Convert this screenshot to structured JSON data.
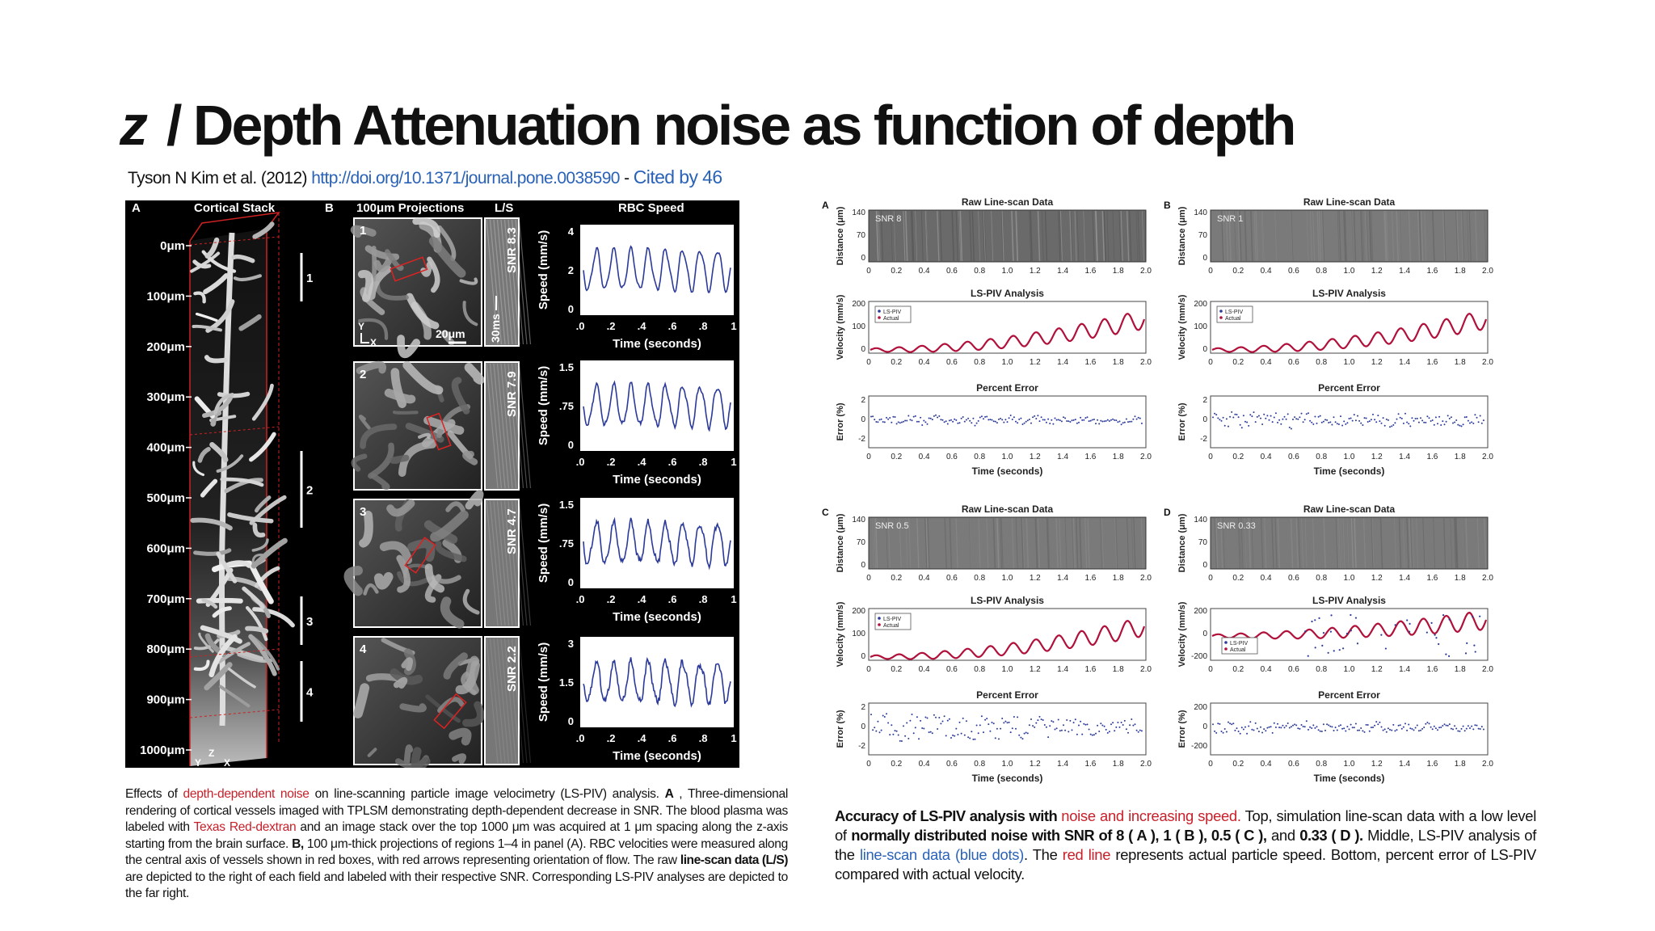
{
  "slide": {
    "title_symbol": "z",
    "title_text": "/ Depth Attenuation noise as function of depth",
    "citation_author": "Tyson N Kim et al. (2012)",
    "citation_link": "http://doi.org/10.1371/journal.pone.0038590",
    "citation_sep": "-",
    "citation_cited": "Cited by 46"
  },
  "left_figure": {
    "panel_a_label": "A",
    "panel_a_title": "Cortical Stack",
    "panel_b_label": "B",
    "panel_b_title": "100μm Projections",
    "ls_title": "L/S",
    "rbc_title": "RBC Speed",
    "depth_ticks": [
      "0μm",
      "100μm",
      "200μm",
      "300μm",
      "400μm",
      "500μm",
      "600μm",
      "700μm",
      "800μm",
      "900μm",
      "1000μm"
    ],
    "region_labels": [
      "1",
      "2",
      "3",
      "4"
    ],
    "axis_y": "Y",
    "axis_x": "X",
    "axis_z": "Z",
    "scale_bar": "20μm",
    "time_bar": "30ms",
    "snr_labels": [
      "SNR 8.3",
      "SNR 7.9",
      "SNR 4.7",
      "SNR 2.2"
    ],
    "speed_ylabel": "Speed (mm/s)",
    "time_xlabel": "Time (seconds)",
    "x_ticks": [
      ".0",
      ".2",
      ".4",
      ".6",
      ".8",
      "1"
    ],
    "y_ticks": [
      [
        "4",
        "2",
        "0"
      ],
      [
        "1.5",
        ".75",
        "0"
      ],
      [
        "1.5",
        ".75",
        "0"
      ],
      [
        "3",
        "1.5",
        "0"
      ]
    ]
  },
  "left_caption": {
    "s1": "Effects of ",
    "s2": "depth-dependent noise",
    "s3": " on line-scanning particle image velocimetry (LS-PIV) analysis. ",
    "s4": "A",
    "s5": " , Three-dimensional rendering of cortical vessels imaged with TPLSM demonstrating depth-dependent decrease in SNR. The blood plasma was labeled with ",
    "s6": "Texas Red-dextran",
    "s7": " and an image stack over the top 1000 μm was acquired at 1 μm spacing along the z-axis starting from the brain surface. ",
    "s8": "B,",
    "s9": " 100 μm-thick projections of regions 1–4 in panel (A). RBC velocities were measured along the central axis of vessels shown in red boxes, with red arrows representing orientation of flow. The raw ",
    "s10": "line-scan data (L/S)",
    "s11": " are depicted to the right of each field and labeled with their respective SNR. Corresponding LS-PIV analyses are depicted to the far right."
  },
  "right_figure": {
    "panel_letters": [
      "A",
      "B",
      "C",
      "D"
    ],
    "snr_tags": [
      "SNR 8",
      "SNR 1",
      "SNR 0.5",
      "SNR 0.33"
    ],
    "raw_title": "Raw Line-scan Data",
    "lspiv_title": "LS-PIV Analysis",
    "error_title": "Percent Error",
    "distance_label": "Distance (μm)",
    "velocity_label": "Velocity (mm/s)",
    "error_label": "Error (%)",
    "time_label": "Time (seconds)",
    "x_ticks": [
      "0",
      "0.2",
      "0.4",
      "0.6",
      "0.8",
      "1.0",
      "1.2",
      "1.4",
      "1.6",
      "1.8",
      "2.0"
    ],
    "dist_ticks": [
      "140",
      "70",
      "0"
    ],
    "vel_ticks": [
      "200",
      "100",
      "0"
    ],
    "vel_ticks_d": [
      "200",
      "0",
      "-200"
    ],
    "err_ticks": [
      "2",
      "0",
      "-2"
    ],
    "err_ticks_d": [
      "200",
      "0",
      "-200"
    ],
    "legend_lspiv": "LS-PIV",
    "legend_actual": "Actual"
  },
  "right_caption": {
    "s1": "Accuracy of LS-PIV analysis with ",
    "s2": "noise and increasing speed.",
    "s3": " Top, simulation line-scan data with a low level of ",
    "s4": "normally distributed noise with SNR of 8 ( A ), 1 ( B ), 0.5 ( C ),",
    "s5": " and ",
    "s6": "0.33 ( D ).",
    "s7": " Middle, LS-PIV analysis of the ",
    "s8": "line-scan data (blue dots)",
    "s9": ". The ",
    "s10": "red line",
    "s11": " represents actual particle speed. Bottom, percent error of LS-PIV compared with actual velocity."
  },
  "colors": {
    "accent_red": "#c8202a",
    "link_blue": "#2a62b8",
    "trace_blue": "#2b3a9a",
    "trace_red": "#b0103a"
  }
}
